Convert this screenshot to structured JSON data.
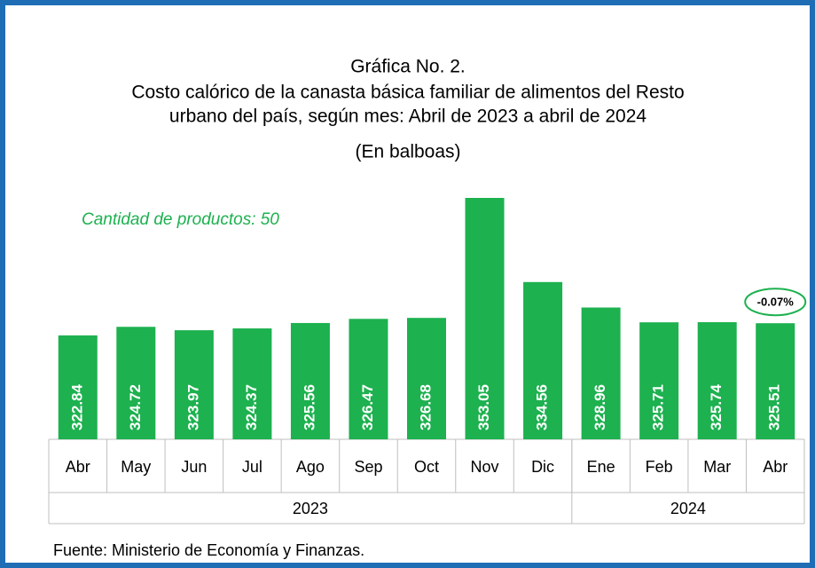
{
  "chart_data": {
    "type": "bar",
    "title": "Gráfica No.  2.",
    "subtitle_lines": [
      "Costo calórico de la canasta básica familiar de alimentos del Resto",
      "urbano del país, según mes: Abril de 2023 a abril de 2024"
    ],
    "unit_label": "(En balboas)",
    "annotation": "Cantidad de productos: 50",
    "change_label": "-0.07%",
    "categories": [
      "Abr",
      "May",
      "Jun",
      "Jul",
      "Ago",
      "Sep",
      "Oct",
      "Nov",
      "Dic",
      "Ene",
      "Feb",
      "Mar",
      "Abr"
    ],
    "x_groups": [
      {
        "label": "2023",
        "count": 9
      },
      {
        "label": "2024",
        "count": 4
      }
    ],
    "values": [
      322.84,
      324.72,
      323.97,
      324.37,
      325.56,
      326.47,
      326.68,
      353.05,
      334.56,
      328.96,
      325.71,
      325.74,
      325.51
    ],
    "color": "#1db14f",
    "ylim": [
      300,
      355
    ],
    "source": "Fuente: Ministerio de Economía y Finanzas."
  }
}
